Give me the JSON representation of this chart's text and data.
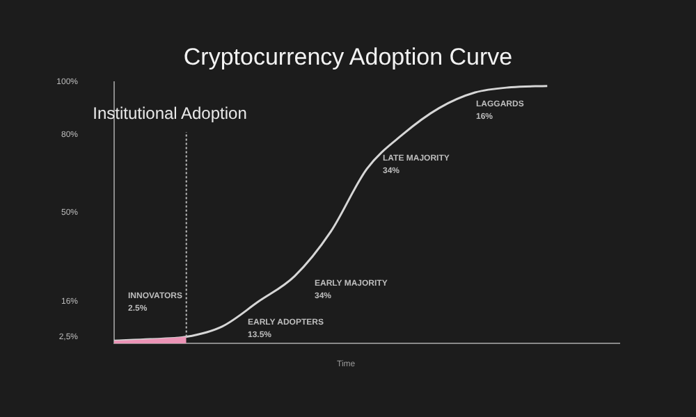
{
  "chart_data": {
    "type": "line",
    "title": "Cryptocurrency Adoption Curve",
    "xlabel": "Time",
    "categories": [
      null,
      null,
      null,
      null,
      null,
      null,
      null,
      null,
      null,
      null,
      null,
      null,
      null,
      null,
      null
    ],
    "series": [
      {
        "type": "area",
        "color": "#ec94b6",
        "values": [
          1.0,
          1.6,
          2.5,
          null,
          null,
          null,
          null,
          null,
          null,
          null,
          null,
          null,
          null,
          null,
          null
        ]
      },
      {
        "type": "line",
        "color": "#d6d6d6",
        "values": [
          1.0,
          1.6,
          2.5,
          6.5,
          16,
          25.7,
          42.7,
          66.7,
          80,
          90,
          96,
          98,
          98.5,
          null,
          null
        ]
      }
    ],
    "ylim": [
      0,
      100
    ],
    "yticks": [
      {
        "value": 2.5,
        "label": "2,5%"
      },
      {
        "value": 16,
        "label": "16%"
      },
      {
        "value": 50,
        "label": "50%"
      },
      {
        "value": 80,
        "label": "80%"
      },
      {
        "value": 100,
        "label": "100%"
      }
    ],
    "annotations": [
      "Institutional Adoption",
      "INNOVATORS\n2.5%",
      "EARLY ADOPTERS\n13.5%",
      "EARLY MAJORITY\n34%",
      "LATE MAJORITY\n34%",
      "LAGGARDS\n16%"
    ],
    "grid": false,
    "legend": false,
    "marker": "none",
    "line_style": "solid",
    "tick_labels": "y"
  }
}
